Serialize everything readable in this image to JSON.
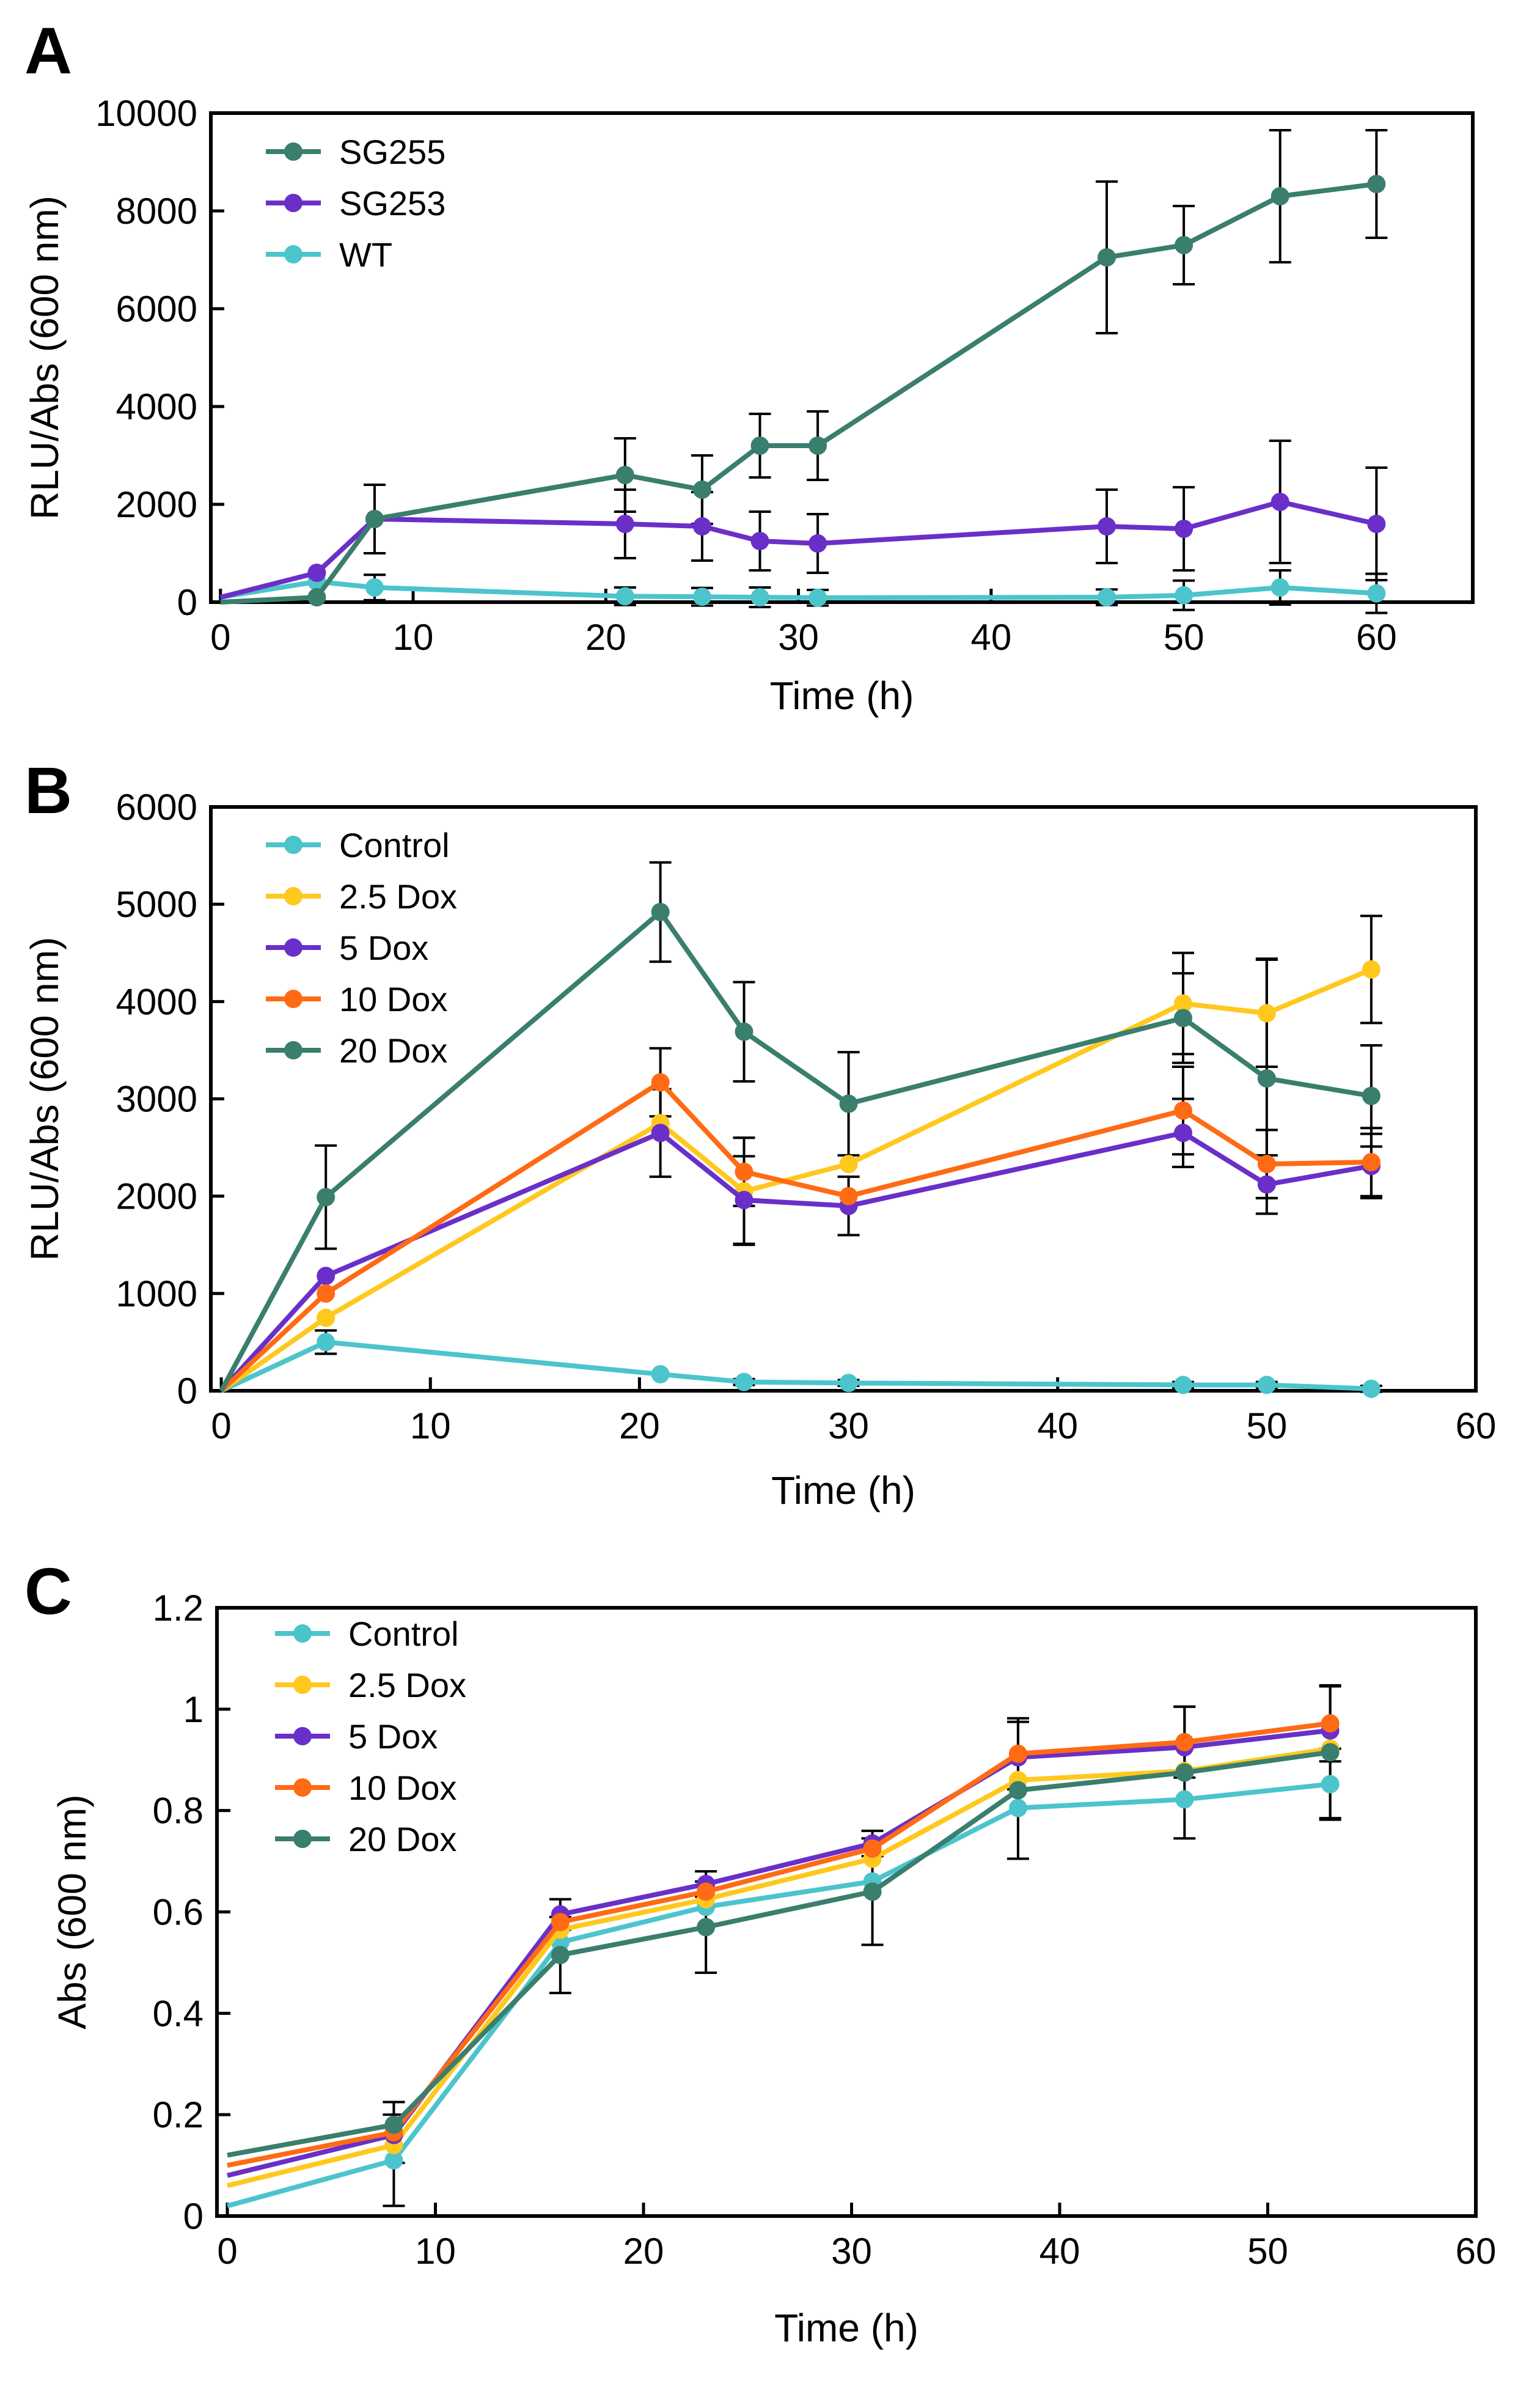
{
  "chart_data": [
    {
      "panel": "A",
      "type": "line",
      "xlabel": "Time (h)",
      "ylabel": "RLU/Abs (600 nm)",
      "xlim": [
        -0.5,
        65
      ],
      "ylim": [
        0,
        10000
      ],
      "xticks": [
        0,
        10,
        20,
        30,
        40,
        50,
        60
      ],
      "yticks": [
        0,
        2000,
        4000,
        6000,
        8000,
        10000
      ],
      "legend_position": "top-left",
      "series": [
        {
          "name": "WT",
          "color": "#4cc4cc",
          "x": [
            0,
            5,
            8,
            21,
            25,
            28,
            31,
            46,
            50,
            55,
            60
          ],
          "y": [
            100,
            420,
            300,
            120,
            110,
            100,
            90,
            100,
            140,
            300,
            180
          ],
          "err": [
            0,
            0,
            260,
            180,
            180,
            200,
            160,
            160,
            300,
            350,
            400
          ]
        },
        {
          "name": "SG253",
          "color": "#6a2fc8",
          "x": [
            0,
            5,
            8,
            21,
            25,
            28,
            31,
            46,
            50,
            55,
            60
          ],
          "y": [
            100,
            600,
            1700,
            1600,
            1550,
            1250,
            1200,
            1550,
            1500,
            2050,
            1600
          ],
          "err": [
            0,
            0,
            700,
            700,
            700,
            600,
            600,
            750,
            850,
            1250,
            1150
          ]
        },
        {
          "name": "SG255",
          "color": "#3a7e6e",
          "x": [
            0,
            5,
            8,
            21,
            25,
            28,
            31,
            46,
            50,
            55,
            60
          ],
          "y": [
            0,
            100,
            1700,
            2600,
            2300,
            3200,
            3200,
            7050,
            7300,
            8300,
            8550
          ],
          "err": [
            0,
            0,
            700,
            750,
            700,
            650,
            700,
            1550,
            800,
            1350,
            1100
          ]
        }
      ]
    },
    {
      "panel": "B",
      "type": "line",
      "xlabel": "Time (h)",
      "ylabel": "RLU/Abs (600 nm)",
      "xlim": [
        -0.5,
        60
      ],
      "ylim": [
        0,
        6000
      ],
      "xticks": [
        0,
        10,
        20,
        30,
        40,
        50,
        60
      ],
      "yticks": [
        0,
        1000,
        2000,
        3000,
        4000,
        5000,
        6000
      ],
      "legend_position": "top-left",
      "series": [
        {
          "name": "Control",
          "color": "#4cc4cc",
          "x": [
            0,
            5,
            21,
            25,
            30,
            46,
            50,
            55
          ],
          "y": [
            0,
            500,
            170,
            90,
            80,
            60,
            60,
            20
          ],
          "err": [
            0,
            120,
            0,
            30,
            30,
            30,
            30,
            30
          ]
        },
        {
          "name": "2.5 Dox",
          "color": "#ffc81e",
          "x": [
            0,
            5,
            21,
            25,
            30,
            46,
            50,
            55
          ],
          "y": [
            0,
            750,
            2750,
            2050,
            2330,
            3980,
            3880,
            4330
          ],
          "err": [
            0,
            0,
            0,
            550,
            0,
            520,
            550,
            550
          ]
        },
        {
          "name": "5 Dox",
          "color": "#6a2fc8",
          "x": [
            0,
            5,
            21,
            25,
            30,
            46,
            50,
            55
          ],
          "y": [
            0,
            1180,
            2650,
            1960,
            1900,
            2650,
            2120,
            2310
          ],
          "err": [
            0,
            0,
            450,
            450,
            300,
            350,
            300,
            330
          ]
        },
        {
          "name": "10 Dox",
          "color": "#ff6a14",
          "x": [
            0,
            5,
            21,
            25,
            30,
            46,
            50,
            55
          ],
          "y": [
            0,
            1000,
            3170,
            2250,
            2000,
            2880,
            2330,
            2350
          ],
          "err": [
            0,
            0,
            350,
            350,
            0,
            450,
            350,
            350
          ]
        },
        {
          "name": "20 Dox",
          "color": "#3a7e6e",
          "x": [
            0,
            5,
            21,
            25,
            30,
            46,
            50,
            55
          ],
          "y": [
            0,
            1990,
            4920,
            3690,
            2950,
            3830,
            3210,
            3030
          ],
          "err": [
            0,
            530,
            510,
            510,
            530,
            460,
            1230,
            520
          ]
        }
      ]
    },
    {
      "panel": "C",
      "type": "line",
      "xlabel": "Time (h)",
      "ylabel": "Abs (600 nm)",
      "xlim": [
        -0.5,
        60
      ],
      "ylim": [
        0,
        1.2
      ],
      "xticks": [
        0,
        10,
        20,
        30,
        40,
        50,
        60
      ],
      "yticks": [
        0,
        0.2,
        0.4,
        0.6,
        0.8,
        1,
        1.2
      ],
      "legend_position": "top-left",
      "series": [
        {
          "name": "Control",
          "color": "#4cc4cc",
          "x": [
            0,
            8,
            16,
            23,
            31,
            38,
            46,
            53
          ],
          "y": [
            0.02,
            0.11,
            0.54,
            0.61,
            0.66,
            0.805,
            0.822,
            0.852
          ],
          "err": [
            0,
            0.09,
            0,
            0,
            0,
            0.0,
            0.0,
            0.07
          ]
        },
        {
          "name": "2.5 Dox",
          "color": "#ffc81e",
          "x": [
            0,
            8,
            16,
            23,
            31,
            38,
            46,
            53
          ],
          "y": [
            0.06,
            0.14,
            0.565,
            0.625,
            0.705,
            0.86,
            0.878,
            0.922
          ],
          "err": [
            0,
            0,
            0,
            0,
            0,
            0,
            0,
            0
          ]
        },
        {
          "name": "5 Dox",
          "color": "#6a2fc8",
          "x": [
            0,
            8,
            16,
            23,
            31,
            38,
            46,
            53
          ],
          "y": [
            0.08,
            0.16,
            0.595,
            0.655,
            0.735,
            0.905,
            0.925,
            0.958
          ],
          "err": [
            0,
            0,
            0.03,
            0.025,
            0.025,
            0,
            0,
            0
          ]
        },
        {
          "name": "10 Dox",
          "color": "#ff6a14",
          "x": [
            0,
            8,
            16,
            23,
            31,
            38,
            46,
            53
          ],
          "y": [
            0.1,
            0.165,
            0.58,
            0.64,
            0.725,
            0.912,
            0.935,
            0.972
          ],
          "err": [
            0,
            0.06,
            0,
            0,
            0,
            0.07,
            0.07,
            0.075
          ]
        },
        {
          "name": "20 Dox",
          "color": "#3a7e6e",
          "x": [
            0,
            8,
            16,
            23,
            31,
            38,
            46,
            53
          ],
          "y": [
            0.12,
            0.18,
            0.515,
            0.57,
            0.64,
            0.84,
            0.875,
            0.915
          ],
          "err": [
            0,
            0.045,
            0.075,
            0.09,
            0.105,
            0.135,
            0.13,
            0.13
          ]
        }
      ]
    }
  ],
  "panels": {
    "A": {
      "letter": "A"
    },
    "B": {
      "letter": "B"
    },
    "C": {
      "letter": "C"
    }
  }
}
